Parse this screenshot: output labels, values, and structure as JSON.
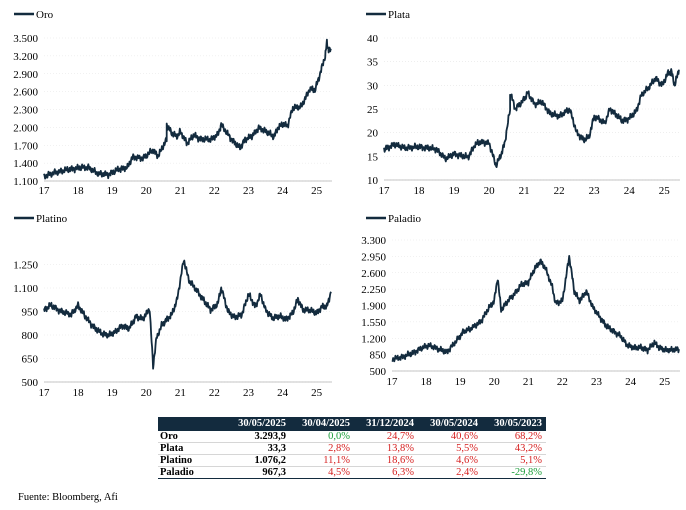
{
  "chart_data": [
    {
      "type": "line",
      "legend": "Oro",
      "color": "#132b3e",
      "xlim": [
        2017.0,
        2025.45
      ],
      "xticks": [
        "17",
        "18",
        "19",
        "20",
        "21",
        "22",
        "23",
        "24",
        "25"
      ],
      "ylim": [
        1100,
        3500
      ],
      "yticks": [
        "1.100",
        "1.400",
        "1.700",
        "2.000",
        "2.300",
        "2.600",
        "2.900",
        "3.200",
        "3.500"
      ],
      "points": [
        [
          2017.0,
          1170
        ],
        [
          2017.3,
          1240
        ],
        [
          2017.6,
          1280
        ],
        [
          2018.0,
          1320
        ],
        [
          2018.3,
          1330
        ],
        [
          2018.6,
          1220
        ],
        [
          2018.9,
          1210
        ],
        [
          2019.2,
          1300
        ],
        [
          2019.45,
          1330
        ],
        [
          2019.6,
          1500
        ],
        [
          2019.9,
          1480
        ],
        [
          2020.2,
          1620
        ],
        [
          2020.35,
          1520
        ],
        [
          2020.6,
          1800
        ],
        [
          2020.6,
          2050
        ],
        [
          2020.75,
          1900
        ],
        [
          2020.9,
          1850
        ],
        [
          2021.0,
          1930
        ],
        [
          2021.2,
          1730
        ],
        [
          2021.4,
          1870
        ],
        [
          2021.6,
          1800
        ],
        [
          2021.9,
          1800
        ],
        [
          2022.1,
          1880
        ],
        [
          2022.2,
          2040
        ],
        [
          2022.5,
          1800
        ],
        [
          2022.75,
          1650
        ],
        [
          2022.9,
          1800
        ],
        [
          2023.1,
          1850
        ],
        [
          2023.3,
          1990
        ],
        [
          2023.5,
          1940
        ],
        [
          2023.75,
          1840
        ],
        [
          2023.85,
          1990
        ],
        [
          2024.0,
          2050
        ],
        [
          2024.15,
          2030
        ],
        [
          2024.3,
          2330
        ],
        [
          2024.55,
          2350
        ],
        [
          2024.8,
          2650
        ],
        [
          2024.95,
          2620
        ],
        [
          2025.1,
          2900
        ],
        [
          2025.25,
          3200
        ],
        [
          2025.3,
          3420
        ],
        [
          2025.35,
          3300
        ],
        [
          2025.42,
          3294
        ]
      ]
    },
    {
      "type": "line",
      "legend": "Plata",
      "color": "#132b3e",
      "xlim": [
        2017.0,
        2025.45
      ],
      "xticks": [
        "17",
        "18",
        "19",
        "20",
        "21",
        "22",
        "23",
        "24",
        "25"
      ],
      "ylim": [
        10,
        40
      ],
      "yticks": [
        "10",
        "15",
        "20",
        "25",
        "30",
        "35",
        "40"
      ],
      "points": [
        [
          2017.0,
          16.5
        ],
        [
          2017.3,
          17.5
        ],
        [
          2017.6,
          16.8
        ],
        [
          2018.0,
          17.0
        ],
        [
          2018.5,
          16.5
        ],
        [
          2018.75,
          14.5
        ],
        [
          2019.0,
          15.5
        ],
        [
          2019.4,
          14.8
        ],
        [
          2019.6,
          17.5
        ],
        [
          2019.75,
          18.0
        ],
        [
          2020.0,
          17.8
        ],
        [
          2020.2,
          13.0
        ],
        [
          2020.35,
          15.5
        ],
        [
          2020.45,
          18.0
        ],
        [
          2020.6,
          25.0
        ],
        [
          2020.6,
          28.5
        ],
        [
          2020.75,
          25.0
        ],
        [
          2021.0,
          27.0
        ],
        [
          2021.1,
          28.5
        ],
        [
          2021.3,
          26.0
        ],
        [
          2021.5,
          26.5
        ],
        [
          2021.75,
          24.0
        ],
        [
          2022.0,
          23.5
        ],
        [
          2022.3,
          25.0
        ],
        [
          2022.5,
          20.0
        ],
        [
          2022.7,
          18.5
        ],
        [
          2022.85,
          19.0
        ],
        [
          2023.0,
          23.5
        ],
        [
          2023.3,
          22.0
        ],
        [
          2023.45,
          25.0
        ],
        [
          2023.6,
          24.0
        ],
        [
          2023.8,
          22.5
        ],
        [
          2024.0,
          23.0
        ],
        [
          2024.2,
          24.5
        ],
        [
          2024.35,
          28.0
        ],
        [
          2024.55,
          29.5
        ],
        [
          2024.75,
          31.5
        ],
        [
          2024.95,
          30.0
        ],
        [
          2025.1,
          32.5
        ],
        [
          2025.2,
          33.0
        ],
        [
          2025.3,
          30.0
        ],
        [
          2025.42,
          33.3
        ]
      ]
    },
    {
      "type": "line",
      "legend": "Platino",
      "color": "#132b3e",
      "xlim": [
        2017.0,
        2025.45
      ],
      "xticks": [
        "17",
        "18",
        "19",
        "20",
        "21",
        "22",
        "23",
        "24",
        "25"
      ],
      "ylim": [
        500,
        1400
      ],
      "yticks": [
        "500",
        "650",
        "800",
        "950",
        "1.100",
        "1.250"
      ],
      "points": [
        [
          2017.0,
          960
        ],
        [
          2017.2,
          990
        ],
        [
          2017.5,
          950
        ],
        [
          2017.8,
          930
        ],
        [
          2018.0,
          990
        ],
        [
          2018.2,
          920
        ],
        [
          2018.5,
          840
        ],
        [
          2018.7,
          810
        ],
        [
          2018.9,
          800
        ],
        [
          2019.1,
          820
        ],
        [
          2019.3,
          860
        ],
        [
          2019.5,
          840
        ],
        [
          2019.7,
          920
        ],
        [
          2019.9,
          900
        ],
        [
          2020.1,
          970
        ],
        [
          2020.2,
          600
        ],
        [
          2020.3,
          780
        ],
        [
          2020.45,
          860
        ],
        [
          2020.6,
          900
        ],
        [
          2020.75,
          930
        ],
        [
          2020.9,
          1020
        ],
        [
          2021.1,
          1280
        ],
        [
          2021.25,
          1150
        ],
        [
          2021.5,
          1080
        ],
        [
          2021.75,
          1000
        ],
        [
          2021.9,
          960
        ],
        [
          2022.1,
          1000
        ],
        [
          2022.2,
          1100
        ],
        [
          2022.4,
          950
        ],
        [
          2022.6,
          910
        ],
        [
          2022.8,
          930
        ],
        [
          2023.0,
          1060
        ],
        [
          2023.2,
          980
        ],
        [
          2023.35,
          1060
        ],
        [
          2023.5,
          960
        ],
        [
          2023.7,
          910
        ],
        [
          2023.9,
          920
        ],
        [
          2024.1,
          900
        ],
        [
          2024.3,
          940
        ],
        [
          2024.45,
          1030
        ],
        [
          2024.6,
          960
        ],
        [
          2024.8,
          960
        ],
        [
          2025.0,
          940
        ],
        [
          2025.15,
          980
        ],
        [
          2025.3,
          980
        ],
        [
          2025.42,
          1076
        ]
      ]
    },
    {
      "type": "line",
      "legend": "Paladio",
      "color": "#132b3e",
      "xlim": [
        2017.0,
        2025.45
      ],
      "xticks": [
        "17",
        "18",
        "19",
        "20",
        "21",
        "22",
        "23",
        "24",
        "25"
      ],
      "ylim": [
        500,
        3300
      ],
      "yticks": [
        "500",
        "850",
        "1.200",
        "1.550",
        "1.900",
        "2.250",
        "2.600",
        "2.950",
        "3.300"
      ],
      "points": [
        [
          2017.0,
          750
        ],
        [
          2017.3,
          800
        ],
        [
          2017.6,
          880
        ],
        [
          2017.9,
          1000
        ],
        [
          2018.1,
          1050
        ],
        [
          2018.4,
          960
        ],
        [
          2018.6,
          900
        ],
        [
          2018.9,
          1150
        ],
        [
          2019.1,
          1350
        ],
        [
          2019.3,
          1400
        ],
        [
          2019.6,
          1550
        ],
        [
          2019.8,
          1800
        ],
        [
          2020.0,
          2000
        ],
        [
          2020.1,
          2500
        ],
        [
          2020.2,
          1800
        ],
        [
          2020.4,
          2000
        ],
        [
          2020.6,
          2150
        ],
        [
          2020.8,
          2350
        ],
        [
          2021.0,
          2400
        ],
        [
          2021.2,
          2700
        ],
        [
          2021.35,
          2850
        ],
        [
          2021.5,
          2700
        ],
        [
          2021.7,
          2300
        ],
        [
          2021.8,
          1950
        ],
        [
          2022.0,
          2000
        ],
        [
          2022.2,
          2950
        ],
        [
          2022.35,
          2200
        ],
        [
          2022.5,
          2000
        ],
        [
          2022.7,
          2200
        ],
        [
          2022.9,
          1850
        ],
        [
          2023.1,
          1650
        ],
        [
          2023.3,
          1450
        ],
        [
          2023.5,
          1350
        ],
        [
          2023.7,
          1250
        ],
        [
          2023.9,
          1050
        ],
        [
          2024.1,
          1000
        ],
        [
          2024.3,
          1000
        ],
        [
          2024.5,
          950
        ],
        [
          2024.7,
          1100
        ],
        [
          2024.85,
          1000
        ],
        [
          2025.0,
          950
        ],
        [
          2025.2,
          950
        ],
        [
          2025.42,
          967
        ]
      ]
    }
  ],
  "table": {
    "headers": [
      "",
      "30/05/2025",
      "30/04/2025",
      "31/12/2024",
      "30/05/2024",
      "30/05/2023"
    ],
    "rows": [
      {
        "name": "Oro",
        "value": "3.293,9",
        "changes": [
          "0,0%",
          "24,7%",
          "40,6%",
          "68,2%"
        ],
        "signs": [
          "pos",
          "neg",
          "neg",
          "neg"
        ]
      },
      {
        "name": "Plata",
        "value": "33,3",
        "changes": [
          "2,8%",
          "13,8%",
          "5,5%",
          "43,2%"
        ],
        "signs": [
          "neg",
          "neg",
          "neg",
          "neg"
        ]
      },
      {
        "name": "Platino",
        "value": "1.076,2",
        "changes": [
          "11,1%",
          "18,6%",
          "4,6%",
          "5,1%"
        ],
        "signs": [
          "neg",
          "neg",
          "neg",
          "neg"
        ]
      },
      {
        "name": "Paladio",
        "value": "967,3",
        "changes": [
          "4,5%",
          "6,3%",
          "2,4%",
          "-29,8%"
        ],
        "signs": [
          "neg",
          "neg",
          "neg",
          "pos"
        ]
      }
    ],
    "colors": {
      "header_bg": "#132b3e",
      "pos": "#1a9e3a",
      "neg": "#d62020"
    }
  },
  "source": "Fuente: Bloomberg, Afi"
}
